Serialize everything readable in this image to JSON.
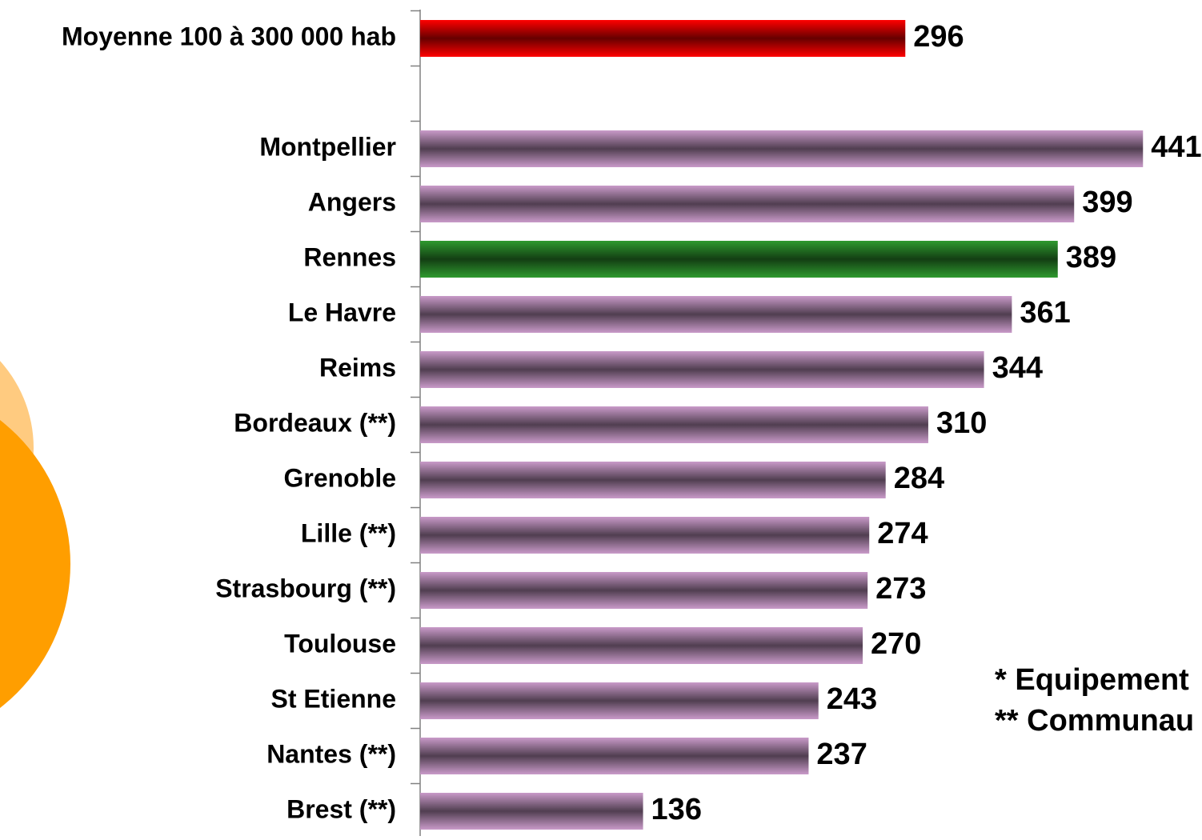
{
  "chart_data": {
    "type": "bar",
    "orientation": "horizontal",
    "categories": [
      "Moyenne 100 à 300 000 hab",
      null,
      "Montpellier",
      "Angers",
      "Rennes",
      "Le Havre",
      "Reims",
      "Bordeaux (**)",
      "Grenoble",
      "Lille (**)",
      "Strasbourg (**)",
      "Toulouse",
      "St Etienne",
      "Nantes (**)",
      "Brest (**)"
    ],
    "values": [
      296,
      null,
      441,
      399,
      389,
      361,
      344,
      310,
      284,
      274,
      273,
      270,
      243,
      237,
      136
    ],
    "colors": [
      "#ff0000",
      null,
      "#c99ac9",
      "#c99ac9",
      "#2f9a2f",
      "#c99ac9",
      "#c99ac9",
      "#c99ac9",
      "#c99ac9",
      "#c99ac9",
      "#c99ac9",
      "#c99ac9",
      "#c99ac9",
      "#c99ac9",
      "#c99ac9"
    ],
    "xlim": [
      0,
      477
    ],
    "annotations": [
      "* Equipement",
      "** Communau"
    ]
  }
}
